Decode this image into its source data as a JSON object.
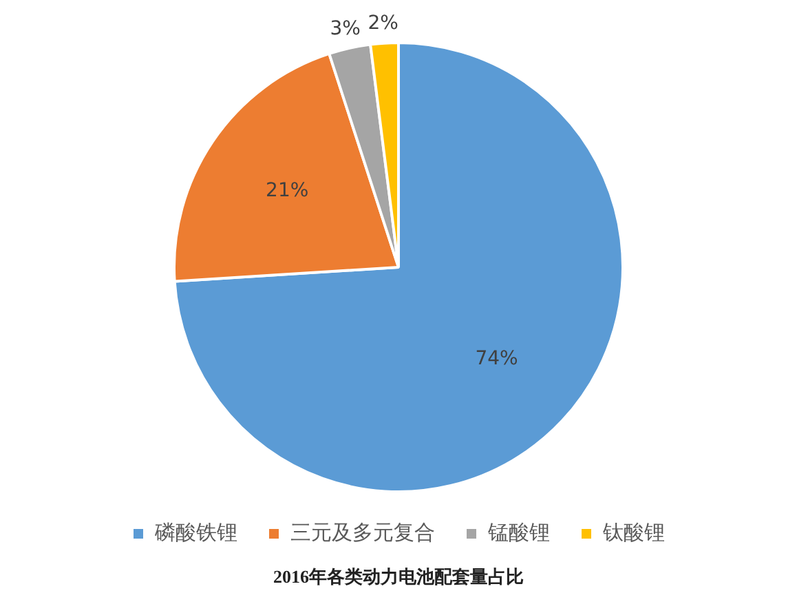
{
  "chart_data": {
    "type": "pie",
    "title": "2016年各类动力电池配套量占比",
    "categories": [
      "磷酸铁锂",
      "三元及多元复合",
      "锰酸锂",
      "钛酸锂"
    ],
    "values": [
      74,
      21,
      3,
      2
    ],
    "colors": [
      "#5b9bd5",
      "#ed7d31",
      "#a5a5a5",
      "#ffc000"
    ],
    "value_labels": [
      "74%",
      "21%",
      "3%",
      "2%"
    ],
    "legend": "bottom"
  }
}
